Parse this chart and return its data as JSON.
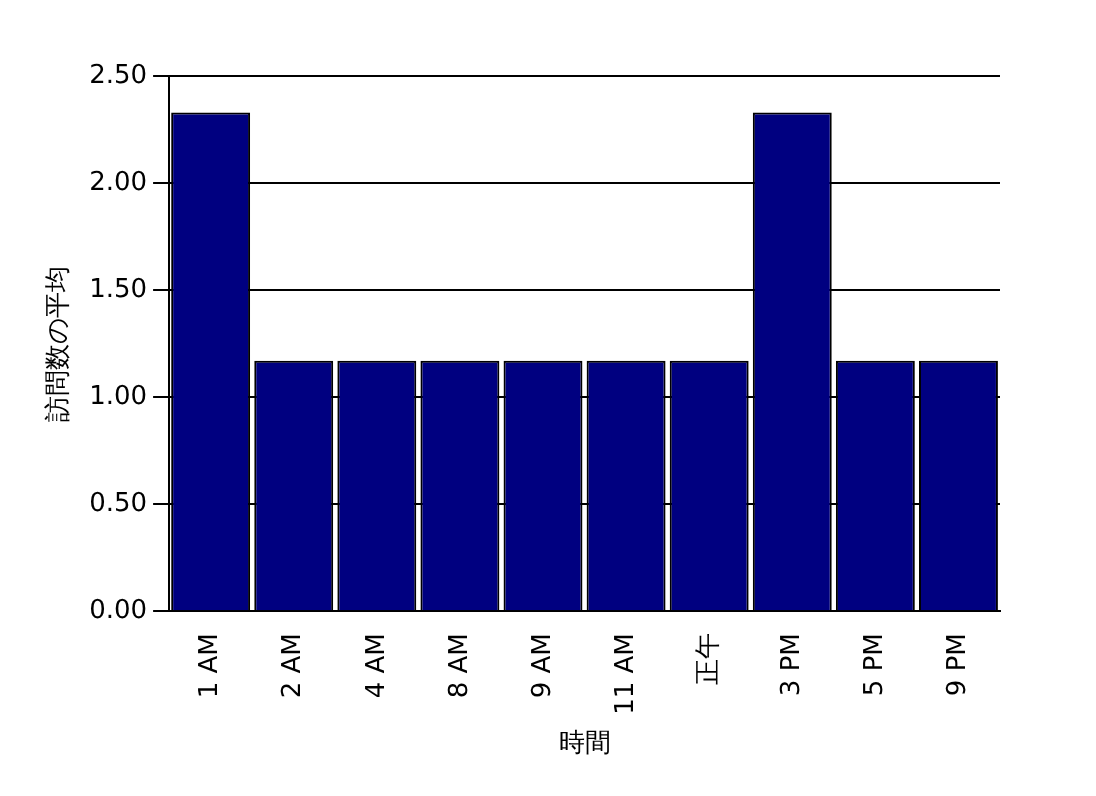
{
  "chart_data": {
    "type": "bar",
    "xlabel": "時間",
    "ylabel": "訪問数の平均",
    "categories": [
      "1 AM",
      "2 AM",
      "4 AM",
      "8 AM",
      "9 AM",
      "11 AM",
      "正午",
      "3 PM",
      "5 PM",
      "9 PM"
    ],
    "values": [
      2.33,
      1.17,
      1.17,
      1.17,
      1.17,
      1.17,
      1.17,
      2.33,
      1.17,
      1.17
    ],
    "color": "#000080",
    "ylim": [
      0,
      2.5
    ],
    "yticks": [
      {
        "value": 0,
        "label": "0.00"
      },
      {
        "value": 0.5,
        "label": "0.50"
      },
      {
        "value": 1,
        "label": "1.00"
      },
      {
        "value": 1.5,
        "label": "1.50"
      },
      {
        "value": 2,
        "label": "2.00"
      },
      {
        "value": 2.5,
        "label": "2.50"
      }
    ],
    "grid": "y",
    "legend": false
  }
}
